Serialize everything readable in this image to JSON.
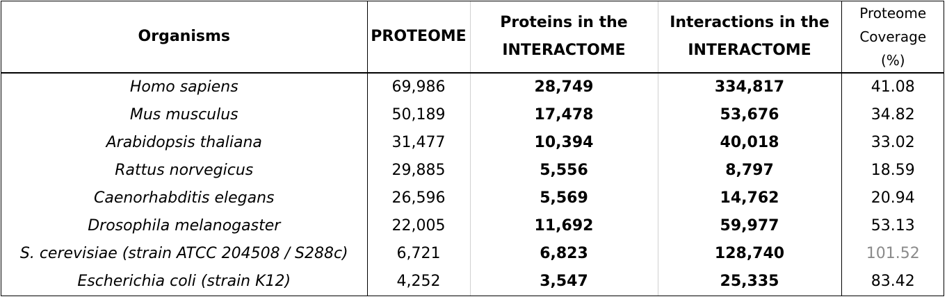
{
  "headers": {
    "organisms": "Organisms",
    "proteome": "PROTEOME",
    "proteins_line1": "Proteins in the",
    "proteins_line2": "INTERACTOME",
    "interactions_line1": "Interactions in the",
    "interactions_line2": "INTERACTOME",
    "coverage_line1": "Proteome",
    "coverage_line2": "Coverage",
    "coverage_line3": "(%)"
  },
  "rows": [
    {
      "organism": "Homo sapiens",
      "proteome": "69,986",
      "proteins": "28,749",
      "interactions": "334,817",
      "coverage": "41.08"
    },
    {
      "organism": "Mus musculus",
      "proteome": "50,189",
      "proteins": "17,478",
      "interactions": "53,676",
      "coverage": "34.82"
    },
    {
      "organism": "Arabidopsis thaliana",
      "proteome": "31,477",
      "proteins": "10,394",
      "interactions": "40,018",
      "coverage": "33.02"
    },
    {
      "organism": "Rattus norvegicus",
      "proteome": "29,885",
      "proteins": "5,556",
      "interactions": "8,797",
      "coverage": "18.59"
    },
    {
      "organism": "Caenorhabditis elegans",
      "proteome": "26,596",
      "proteins": "5,569",
      "interactions": "14,762",
      "coverage": "20.94"
    },
    {
      "organism": "Drosophila melanogaster",
      "proteome": "22,005",
      "proteins": "11,692",
      "interactions": "59,977",
      "coverage": "53.13"
    },
    {
      "organism": "S. cerevisiae (strain ATCC 204508 / S288c)",
      "proteome": "6,721",
      "proteins": "6,823",
      "interactions": "128,740",
      "coverage": "101.52"
    },
    {
      "organism": "Escherichia coli (strain K12)",
      "proteome": "4,252",
      "proteins": "3,547",
      "interactions": "25,335",
      "coverage": "83.42"
    }
  ],
  "colors": {
    "text": "#000000",
    "muted_value": "#8a8a8a",
    "grid": "#d0d0d0"
  }
}
